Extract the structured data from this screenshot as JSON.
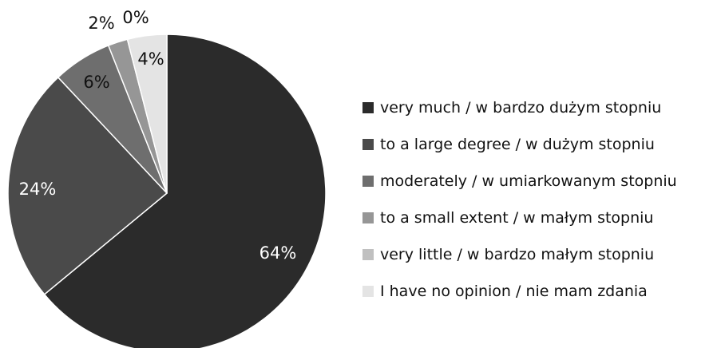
{
  "chart_data": {
    "type": "pie",
    "categories": [
      "very much / w bardzo dużym stopniu",
      "to a large degree / w dużym stopniu",
      "moderately / w umiarkowanym stopniu",
      "to a small extent / w małym stopniu",
      "very little / w bardzo małym stopniu",
      "I have no opinion / nie mam zdania"
    ],
    "values": [
      64,
      24,
      6,
      2,
      0,
      4
    ],
    "data_labels": [
      "64%",
      "24%",
      "6%",
      "2%",
      "0%",
      "4%"
    ],
    "colors": [
      "#2b2b2b",
      "#4a4a4a",
      "#6e6e6e",
      "#969696",
      "#c0c0c0",
      "#e4e4e4"
    ],
    "label_colors": [
      "#ffffff",
      "#ffffff",
      "#111111",
      "#111111",
      "#111111",
      "#111111"
    ],
    "start": "12 o'clock",
    "direction": "clockwise",
    "legend_position": "right"
  }
}
